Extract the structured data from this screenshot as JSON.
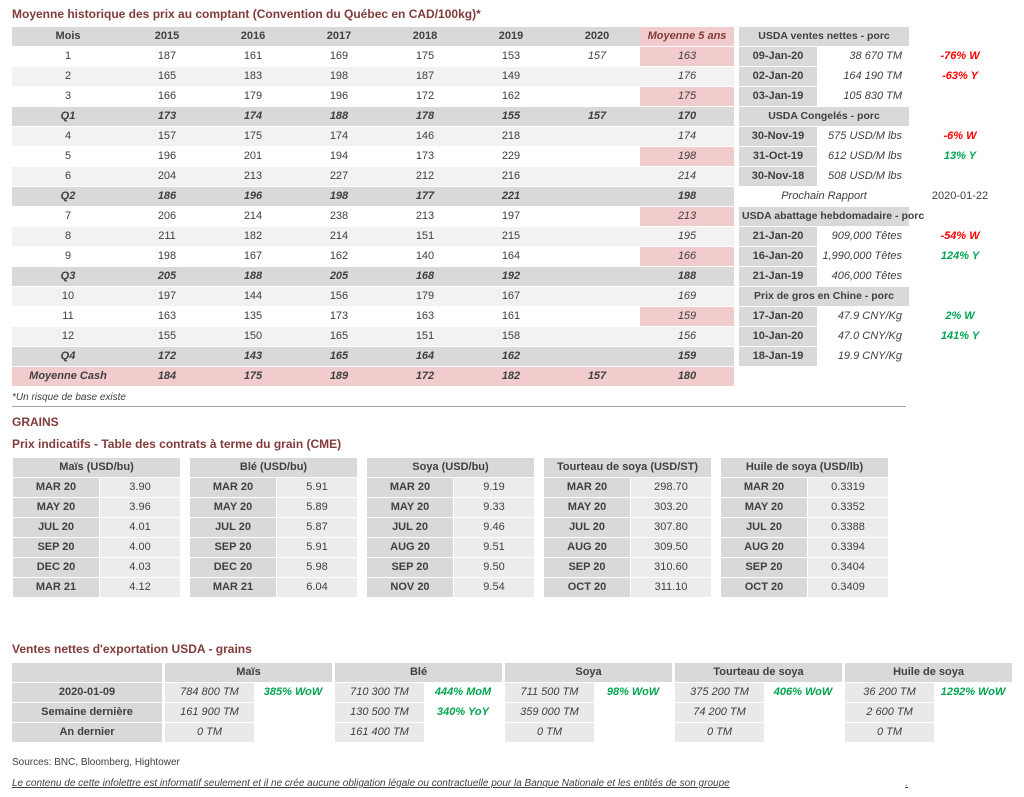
{
  "colors": {
    "accent_title": "#823B3B",
    "header_gray": "#D9D9D9",
    "row_alt_gray": "#F2F2F2",
    "highlight_pink": "#F2CCCC",
    "positive_green": "#00A550",
    "negative_red": "#FF0000"
  },
  "page": {
    "footnote": "*Un risque de base existe",
    "grains_heading": "GRAINS",
    "sources": "Sources: BNC, Bloomberg, Hightower",
    "disclaimer": "Le contenu de cette infolettre est informatif seulement et il ne crée aucune obligation légale ou contractuelle pour la Banque Nationale et les entités de son groupe",
    "disclaimer_suffix": "."
  },
  "spot": {
    "title": "Moyenne historique des prix au comptant (Convention du Québec en CAD/100kg)*",
    "headers": [
      "Mois",
      "2015",
      "2016",
      "2017",
      "2018",
      "2019",
      "2020",
      "Moyenne 5 ans"
    ],
    "rows": [
      [
        "1",
        "187",
        "161",
        "169",
        "175",
        "153",
        "157",
        "163"
      ],
      [
        "2",
        "165",
        "183",
        "198",
        "187",
        "149",
        "",
        "176"
      ],
      [
        "3",
        "166",
        "179",
        "196",
        "172",
        "162",
        "",
        "175"
      ],
      [
        "Q1",
        "173",
        "174",
        "188",
        "178",
        "155",
        "157",
        "170"
      ],
      [
        "4",
        "157",
        "175",
        "174",
        "146",
        "218",
        "",
        "174"
      ],
      [
        "5",
        "196",
        "201",
        "194",
        "173",
        "229",
        "",
        "198"
      ],
      [
        "6",
        "204",
        "213",
        "227",
        "212",
        "216",
        "",
        "214"
      ],
      [
        "Q2",
        "186",
        "196",
        "198",
        "177",
        "221",
        "",
        "198"
      ],
      [
        "7",
        "206",
        "214",
        "238",
        "213",
        "197",
        "",
        "213"
      ],
      [
        "8",
        "211",
        "182",
        "214",
        "151",
        "215",
        "",
        "195"
      ],
      [
        "9",
        "198",
        "167",
        "162",
        "140",
        "164",
        "",
        "166"
      ],
      [
        "Q3",
        "205",
        "188",
        "205",
        "168",
        "192",
        "",
        "188"
      ],
      [
        "10",
        "197",
        "144",
        "156",
        "179",
        "167",
        "",
        "169"
      ],
      [
        "11",
        "163",
        "135",
        "173",
        "163",
        "161",
        "",
        "159"
      ],
      [
        "12",
        "155",
        "150",
        "165",
        "151",
        "158",
        "",
        "156"
      ],
      [
        "Q4",
        "172",
        "143",
        "165",
        "164",
        "162",
        "",
        "159"
      ],
      [
        "Moyenne Cash",
        "184",
        "175",
        "189",
        "172",
        "182",
        "157",
        "180"
      ]
    ]
  },
  "sidebar": {
    "sections": [
      {
        "title": "USDA ventes nettes - porc",
        "rows": [
          {
            "date": "09-Jan-20",
            "value": "38 670 TM",
            "pct": "-76% W",
            "dir": "down"
          },
          {
            "date": "02-Jan-20",
            "value": "164 190 TM",
            "pct": "-63% Y",
            "dir": "down"
          },
          {
            "date": "03-Jan-19",
            "value": "105 830 TM",
            "pct": "",
            "dir": ""
          }
        ]
      },
      {
        "title": "USDA Congelés - porc",
        "rows": [
          {
            "date": "30-Nov-19",
            "value": "575 USD/M lbs",
            "pct": "-6% W",
            "dir": "down"
          },
          {
            "date": "31-Oct-19",
            "value": "612 USD/M lbs",
            "pct": "13% Y",
            "dir": "up"
          },
          {
            "date": "30-Nov-18",
            "value": "508 USD/M lbs",
            "pct": "",
            "dir": ""
          }
        ]
      },
      {
        "title": "USDA abattage hebdomadaire - porc",
        "rows": [
          {
            "date": "21-Jan-20",
            "value": "909,000 Têtes",
            "pct": "-54% W",
            "dir": "down"
          },
          {
            "date": "16-Jan-20",
            "value": "1,990,000 Têtes",
            "pct": "124% Y",
            "dir": "up"
          },
          {
            "date": "21-Jan-19",
            "value": "406,000 Têtes",
            "pct": "",
            "dir": ""
          }
        ]
      },
      {
        "title": "Prix de gros en Chine - porc",
        "rows": [
          {
            "date": "17-Jan-20",
            "value": "47.9 CNY/Kg",
            "pct": "2% W",
            "dir": "up"
          },
          {
            "date": "10-Jan-20",
            "value": "47.0 CNY/Kg",
            "pct": "141% Y",
            "dir": "up"
          },
          {
            "date": "18-Jan-19",
            "value": "19.9 CNY/Kg",
            "pct": "",
            "dir": ""
          }
        ]
      }
    ],
    "next_report": {
      "label": "Prochain Rapport",
      "value": "2020-01-22"
    }
  },
  "futures": {
    "title": "Prix indicatifs - Table des contrats à terme du grain (CME)",
    "tables": [
      {
        "header": "Maïs (USD/bu)",
        "rows": [
          [
            "MAR 20",
            "3.90"
          ],
          [
            "MAY 20",
            "3.96"
          ],
          [
            "JUL 20",
            "4.01"
          ],
          [
            "SEP 20",
            "4.00"
          ],
          [
            "DEC 20",
            "4.03"
          ],
          [
            "MAR 21",
            "4.12"
          ]
        ]
      },
      {
        "header": "Blé (USD/bu)",
        "rows": [
          [
            "MAR 20",
            "5.91"
          ],
          [
            "MAY 20",
            "5.89"
          ],
          [
            "JUL 20",
            "5.87"
          ],
          [
            "SEP 20",
            "5.91"
          ],
          [
            "DEC 20",
            "5.98"
          ],
          [
            "MAR 21",
            "6.04"
          ]
        ]
      },
      {
        "header": "Soya (USD/bu)",
        "rows": [
          [
            "MAR 20",
            "9.19"
          ],
          [
            "MAY 20",
            "9.33"
          ],
          [
            "JUL 20",
            "9.46"
          ],
          [
            "AUG 20",
            "9.51"
          ],
          [
            "SEP 20",
            "9.50"
          ],
          [
            "NOV 20",
            "9.54"
          ]
        ]
      },
      {
        "header": "Tourteau de soya (USD/ST)",
        "rows": [
          [
            "MAR 20",
            "298.70"
          ],
          [
            "MAY 20",
            "303.20"
          ],
          [
            "JUL 20",
            "307.80"
          ],
          [
            "AUG 20",
            "309.50"
          ],
          [
            "SEP 20",
            "310.60"
          ],
          [
            "OCT 20",
            "311.10"
          ]
        ]
      },
      {
        "header": "Huile de soya (USD/lb)",
        "rows": [
          [
            "MAR 20",
            "0.3319"
          ],
          [
            "MAY 20",
            "0.3352"
          ],
          [
            "JUL 20",
            "0.3388"
          ],
          [
            "AUG 20",
            "0.3394"
          ],
          [
            "SEP 20",
            "0.3404"
          ],
          [
            "OCT 20",
            "0.3409"
          ]
        ]
      }
    ]
  },
  "exports": {
    "title": "Ventes nettes d'exportation USDA - grains",
    "headers": [
      "Maïs",
      "Blé",
      "Soya",
      "Tourteau de soya",
      "Huile de soya"
    ],
    "rows": [
      {
        "label": "2020-01-09",
        "cells": [
          [
            "784 800 TM",
            "385% WoW"
          ],
          [
            "710 300 TM",
            "444% MoM"
          ],
          [
            "711 500 TM",
            "98% WoW"
          ],
          [
            "375 200 TM",
            "406% WoW"
          ],
          [
            "36 200 TM",
            "1292% WoW"
          ]
        ]
      },
      {
        "label": "Semaine dernière",
        "cells": [
          [
            "161 900 TM",
            ""
          ],
          [
            "130 500 TM",
            "340% YoY"
          ],
          [
            "359 000 TM",
            ""
          ],
          [
            "74 200 TM",
            ""
          ],
          [
            "2 600 TM",
            ""
          ]
        ]
      },
      {
        "label": "An dernier",
        "cells": [
          [
            "0 TM",
            ""
          ],
          [
            "161 400 TM",
            ""
          ],
          [
            "0 TM",
            ""
          ],
          [
            "0 TM",
            ""
          ],
          [
            "0 TM",
            ""
          ]
        ]
      }
    ]
  }
}
